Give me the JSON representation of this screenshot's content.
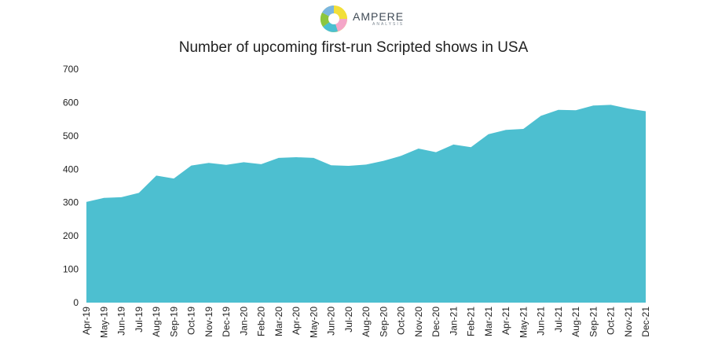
{
  "logo": {
    "name": "AMPERE",
    "sub": "ANALYSIS",
    "colors": [
      "#f2df3a",
      "#8cc63f",
      "#4bbfd1",
      "#7ab6e0",
      "#f4a6c8",
      "#b9a6e0"
    ]
  },
  "chart_data": {
    "type": "area",
    "title": "Number of upcoming first-run Scripted shows in USA",
    "xlabel": "",
    "ylabel": "",
    "ylim": [
      0,
      700
    ],
    "yticks": [
      0,
      100,
      200,
      300,
      400,
      500,
      600,
      700
    ],
    "grid": false,
    "legend": "none",
    "color": "#4dbfd0",
    "categories": [
      "Apr-19",
      "May-19",
      "Jun-19",
      "Jul-19",
      "Aug-19",
      "Sep-19",
      "Oct-19",
      "Nov-19",
      "Dec-19",
      "Jan-20",
      "Feb-20",
      "Mar-20",
      "Apr-20",
      "May-20",
      "Jun-20",
      "Jul-20",
      "Aug-20",
      "Sep-20",
      "Oct-20",
      "Nov-20",
      "Dec-20",
      "Jan-21",
      "Feb-21",
      "Mar-21",
      "Apr-21",
      "May-21",
      "Jun-21",
      "Jul-21",
      "Aug-21",
      "Sep-21",
      "Oct-21",
      "Nov-21",
      "Dec-21"
    ],
    "values": [
      302,
      314,
      316,
      329,
      381,
      372,
      411,
      419,
      413,
      421,
      415,
      434,
      436,
      434,
      412,
      410,
      414,
      425,
      440,
      462,
      451,
      474,
      466,
      505,
      518,
      521,
      560,
      578,
      577,
      591,
      593,
      582,
      574
    ]
  }
}
